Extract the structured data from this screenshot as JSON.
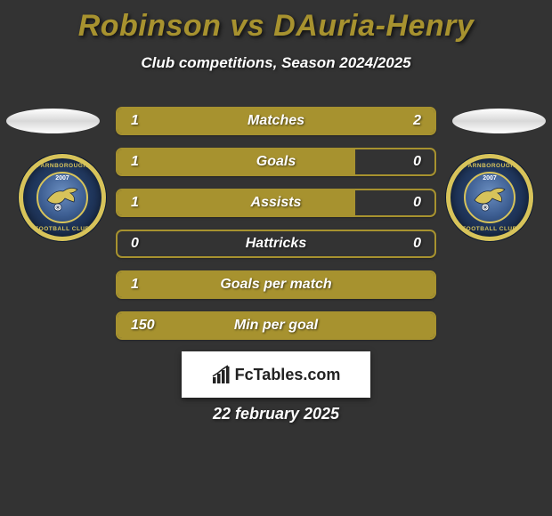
{
  "title": "Robinson vs DAuria-Henry",
  "subtitle": "Club competitions, Season 2024/2025",
  "title_color": "#a7922f",
  "background_color": "#333333",
  "bar_border_color": "#a7922f",
  "bar_fill_color": "#a7922f",
  "crest": {
    "top_text": "FARNBOROUGH",
    "year": "2007",
    "bottom_text": "FOOTBALL CLUB",
    "ring_color": "#d7c35a",
    "outer_bg": "#1f355a",
    "inner_bg": "#3d5e92"
  },
  "bars": [
    {
      "label": "Matches",
      "left_val": "1",
      "right_val": "2",
      "left_pct": 33.3,
      "right_pct": 66.7
    },
    {
      "label": "Goals",
      "left_val": "1",
      "right_val": "0",
      "left_pct": 75,
      "right_pct": 0
    },
    {
      "label": "Assists",
      "left_val": "1",
      "right_val": "0",
      "left_pct": 75,
      "right_pct": 0
    },
    {
      "label": "Hattricks",
      "left_val": "0",
      "right_val": "0",
      "left_pct": 0,
      "right_pct": 0
    },
    {
      "label": "Goals per match",
      "left_val": "1",
      "right_val": "",
      "left_pct": 100,
      "right_pct": 0
    },
    {
      "label": "Min per goal",
      "left_val": "150",
      "right_val": "",
      "left_pct": 100,
      "right_pct": 0
    }
  ],
  "attribution": "FcTables.com",
  "date": "22 february 2025"
}
